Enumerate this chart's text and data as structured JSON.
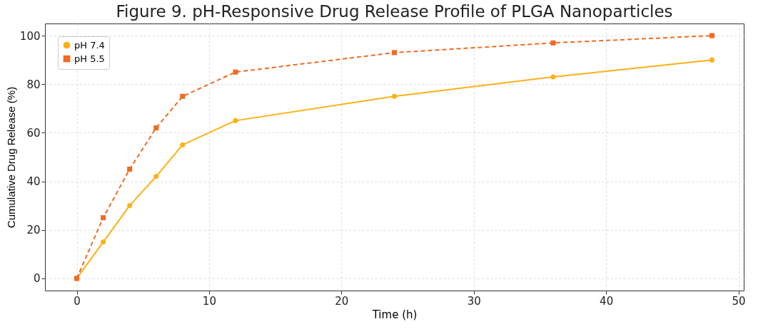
{
  "chart_data": {
    "type": "line",
    "title": "Figure 9. pH-Responsive Drug Release Profile of PLGA Nanoparticles",
    "xlabel": "Time (h)",
    "ylabel": "Cumulative Drug Release (%)",
    "x": [
      0,
      2,
      4,
      6,
      8,
      12,
      24,
      36,
      48
    ],
    "series": [
      {
        "name": "pH 7.4",
        "color": "#fbb117",
        "marker": "circle",
        "line_style": "solid",
        "values": [
          0,
          15,
          30,
          42,
          55,
          65,
          75,
          83,
          90
        ]
      },
      {
        "name": "pH 5.5",
        "color": "#f26b21",
        "marker": "square",
        "line_style": "dashed",
        "values": [
          0,
          25,
          45,
          62,
          75,
          85,
          93,
          97,
          100
        ]
      }
    ],
    "xlim": [
      -2.4,
      50.4
    ],
    "xticks": [
      0,
      10,
      20,
      30,
      40,
      50
    ],
    "ylim": [
      -5,
      105
    ],
    "yticks": [
      0,
      20,
      40,
      60,
      80,
      100
    ],
    "grid": true,
    "legend": "top left"
  }
}
